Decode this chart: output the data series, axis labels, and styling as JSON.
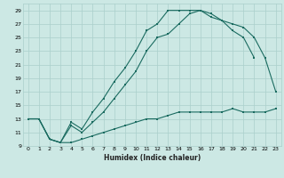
{
  "title": "",
  "xlabel": "Humidex (Indice chaleur)",
  "bg_color": "#cce8e4",
  "grid_color": "#aacfcb",
  "line_color": "#1a6b60",
  "line1_y": [
    13,
    13,
    10,
    9.5,
    12,
    11,
    12.5,
    14,
    16,
    18,
    20,
    23,
    25,
    25.5,
    27,
    28.5,
    29,
    28.5,
    27.5,
    26,
    25,
    22,
    null,
    null
  ],
  "line2_y": [
    13,
    13,
    10,
    9.5,
    12.5,
    11.5,
    14,
    16,
    18.5,
    20.5,
    23,
    26,
    27,
    29,
    29,
    29,
    29,
    28,
    27.5,
    27,
    26.5,
    25,
    22,
    17
  ],
  "line3_y": [
    13,
    13,
    10,
    9.5,
    9.5,
    10,
    10.5,
    11,
    11.5,
    12,
    12.5,
    13,
    13,
    13.5,
    14,
    14,
    14,
    14,
    14,
    14.5,
    14,
    14,
    14,
    14.5
  ],
  "xlim": [
    -0.5,
    23.5
  ],
  "ylim": [
    9,
    30
  ],
  "yticks": [
    9,
    11,
    13,
    15,
    17,
    19,
    21,
    23,
    25,
    27,
    29
  ],
  "xticks": [
    0,
    1,
    2,
    3,
    4,
    5,
    6,
    7,
    8,
    9,
    10,
    11,
    12,
    13,
    14,
    15,
    16,
    17,
    18,
    19,
    20,
    21,
    22,
    23
  ],
  "xlabel_fontsize": 5.5,
  "tick_fontsize": 4.5,
  "line_width": 0.8,
  "marker_size": 1.8
}
